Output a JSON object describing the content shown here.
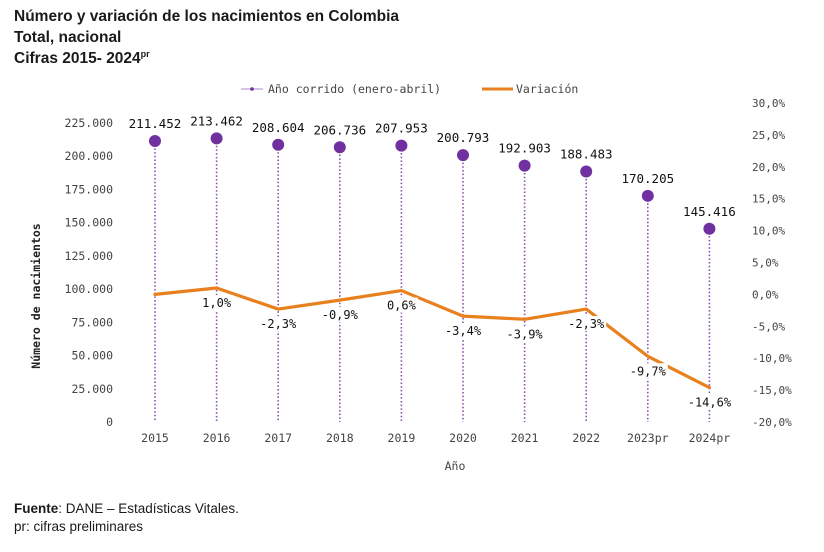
{
  "chart_data": {
    "type": "bar",
    "title": "Número y variación de los nacimientos en Colombia",
    "subtitle_1": "Total, nacional",
    "subtitle_2_main": "Cifras 2015- 2024",
    "subtitle_2_sup": "pr",
    "xlabel": "Año",
    "ylabel": "Número de nacimientos",
    "categories": [
      "2015",
      "2016",
      "2017",
      "2018",
      "2019",
      "2020",
      "2021",
      "2022",
      "2023pr",
      "2024pr"
    ],
    "series": [
      {
        "name": "Año corrido (enero-abril)",
        "kind": "lollipop",
        "color": "#7030a0",
        "values": [
          211452,
          213462,
          208604,
          206736,
          207953,
          200793,
          192903,
          188483,
          170205,
          145416
        ],
        "labels": [
          "211.452",
          "213.462",
          "208.604",
          "206.736",
          "207.953",
          "200.793",
          "192.903",
          "188.483",
          "170.205",
          "145.416"
        ]
      },
      {
        "name": "Variación",
        "kind": "line",
        "axis": "right",
        "color": "#e8801e",
        "values": [
          0.0,
          1.0,
          -2.3,
          -0.9,
          0.6,
          -3.4,
          -3.9,
          -2.3,
          -9.7,
          -14.6
        ],
        "labels": [
          "",
          "1,0%",
          "-2,3%",
          "-0,9%",
          "0,6%",
          "-3,4%",
          "-3,9%",
          "-2,3%",
          "-9,7%",
          "-14,6%"
        ]
      }
    ],
    "ylim_left": [
      0,
      225000
    ],
    "yticks_left": [
      "0",
      "25.000",
      "50.000",
      "75.000",
      "100.000",
      "125.000",
      "150.000",
      "175.000",
      "200.000",
      "225.000"
    ],
    "ylim_right": [
      -20,
      30
    ],
    "yticks_right": [
      "-20,0%",
      "-15,0%",
      "-10,0%",
      "-5,0%",
      "0,0%",
      "5,0%",
      "10,0%",
      "15,0%",
      "20,0%",
      "25,0%",
      "30,0%"
    ],
    "legend_position": "top",
    "grid": false
  },
  "footer": {
    "source_label": "Fuente",
    "source_text": ": DANE – Estadísticas Vitales.",
    "note": "pr: cifras preliminares"
  }
}
